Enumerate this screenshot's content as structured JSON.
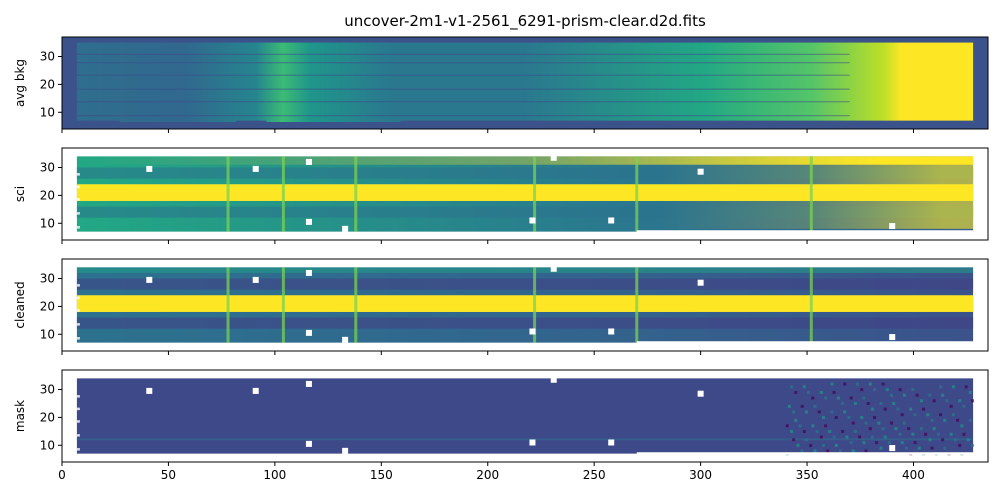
{
  "chart_data": {
    "type": "heatmap",
    "title": "uncover-2m1-v1-2561_6291-prism-clear.d2d.fits",
    "xlim": [
      0,
      435
    ],
    "ylim": [
      4,
      37
    ],
    "x_ticks": [
      "0",
      "50",
      "100",
      "150",
      "200",
      "250",
      "300",
      "350",
      "400"
    ],
    "y_ticks": [
      "10",
      "20",
      "30"
    ],
    "data_extent": {
      "x": [
        7,
        428
      ],
      "y": [
        6.5,
        35
      ]
    },
    "colormap": "viridis",
    "panels": [
      {
        "ylabel": "avg bkg",
        "structure": "background level increasing with x: low (0.15) at left, bright band near x≈90, rising to saturation beyond x≈370; faint horizontal shutter bars",
        "fill_rows": [
          6.5,
          35
        ]
      },
      {
        "ylabel": "sci",
        "structure": "saturated trace band y≈18–24, negative shutter traces y≈12–16 and y≈26–30, vertical sky lines at x≈78,104,138,222,270,352",
        "fill_rows": [
          7,
          34
        ]
      },
      {
        "ylabel": "cleaned",
        "structure": "saturated trace band y≈18–24 with lower residual background than sci; same sky lines",
        "fill_rows": [
          7,
          34
        ]
      },
      {
        "ylabel": "mask",
        "structure": "mostly uniform low value with noisy patches at red end (x>340) and faint streak near y≈12",
        "fill_rows": [
          7,
          34
        ]
      }
    ],
    "masked_pixels": [
      {
        "x": 41,
        "y": 29.5
      },
      {
        "x": 91,
        "y": 29.5
      },
      {
        "x": 116,
        "y": 32
      },
      {
        "x": 116,
        "y": 10.5
      },
      {
        "x": 133,
        "y": 8
      },
      {
        "x": 221,
        "y": 11
      },
      {
        "x": 231,
        "y": 33.5
      },
      {
        "x": 258,
        "y": 11
      },
      {
        "x": 300,
        "y": 28.5
      },
      {
        "x": 390,
        "y": 9
      }
    ],
    "grid": false
  }
}
